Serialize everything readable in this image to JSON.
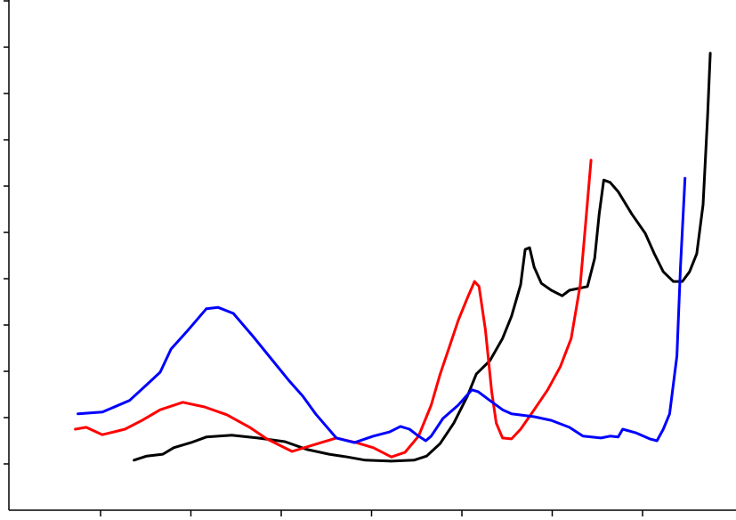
{
  "chart_data": {
    "type": "line",
    "xlim": [
      0,
      8
    ],
    "ylim": [
      -1,
      10
    ],
    "xticks": [
      1,
      2,
      3,
      4,
      5,
      6,
      7
    ],
    "yticks": [
      0,
      1,
      2,
      3,
      4,
      5,
      6,
      7,
      8,
      9,
      10
    ],
    "series": [
      {
        "color": "#000000",
        "x": [
          1.37,
          1.51,
          1.69,
          1.81,
          2.0,
          2.17,
          2.45,
          2.74,
          3.04,
          3.29,
          3.53,
          3.73,
          3.93,
          4.22,
          4.47,
          4.61,
          4.76,
          4.91,
          5.06,
          5.16,
          5.31,
          5.45,
          5.55,
          5.65,
          5.7,
          5.75,
          5.8,
          5.88,
          5.99,
          6.11,
          6.19,
          6.39,
          6.47,
          6.52,
          6.57,
          6.64,
          6.73,
          6.88,
          7.03,
          7.13,
          7.23,
          7.34,
          7.44,
          7.52,
          7.6,
          7.67,
          7.72,
          7.75
        ],
        "values": [
          0.08,
          0.17,
          0.21,
          0.35,
          0.46,
          0.58,
          0.62,
          0.56,
          0.48,
          0.31,
          0.21,
          0.15,
          0.08,
          0.06,
          0.08,
          0.17,
          0.44,
          0.88,
          1.46,
          1.94,
          2.23,
          2.71,
          3.19,
          3.87,
          4.63,
          4.67,
          4.25,
          3.9,
          3.75,
          3.63,
          3.75,
          3.83,
          4.44,
          5.4,
          6.13,
          6.08,
          5.88,
          5.4,
          4.98,
          4.54,
          4.15,
          3.94,
          3.94,
          4.15,
          4.54,
          5.6,
          7.52,
          8.87
        ]
      },
      {
        "color": "#ff0000",
        "x": [
          0.72,
          0.84,
          1.02,
          1.27,
          1.46,
          1.66,
          1.91,
          2.15,
          2.4,
          2.65,
          2.84,
          3.12,
          3.34,
          3.61,
          3.83,
          4.02,
          4.22,
          4.37,
          4.52,
          4.66,
          4.76,
          4.86,
          4.96,
          5.06,
          5.14,
          5.19,
          5.26,
          5.33,
          5.38,
          5.45,
          5.55,
          5.65,
          5.8,
          5.95,
          6.09,
          6.21,
          6.31,
          6.37,
          6.43
        ],
        "values": [
          0.75,
          0.79,
          0.63,
          0.75,
          0.94,
          1.17,
          1.33,
          1.23,
          1.06,
          0.79,
          0.54,
          0.27,
          0.4,
          0.56,
          0.46,
          0.35,
          0.15,
          0.25,
          0.6,
          1.27,
          1.94,
          2.52,
          3.1,
          3.58,
          3.94,
          3.83,
          2.9,
          1.56,
          0.88,
          0.56,
          0.54,
          0.75,
          1.17,
          1.6,
          2.1,
          2.71,
          3.87,
          5.21,
          6.56
        ]
      },
      {
        "color": "#0000ff",
        "x": [
          0.75,
          1.02,
          1.32,
          1.51,
          1.66,
          1.78,
          1.96,
          2.17,
          2.3,
          2.47,
          2.69,
          2.89,
          3.09,
          3.24,
          3.38,
          3.61,
          3.81,
          4.02,
          4.2,
          4.32,
          4.42,
          4.52,
          4.6,
          4.66,
          4.79,
          4.96,
          5.11,
          5.18,
          5.31,
          5.45,
          5.55,
          5.8,
          5.99,
          6.19,
          6.34,
          6.54,
          6.64,
          6.73,
          6.78,
          6.93,
          7.08,
          7.16,
          7.23,
          7.3,
          7.38,
          7.42,
          7.47
        ],
        "values": [
          1.08,
          1.12,
          1.37,
          1.71,
          1.98,
          2.48,
          2.87,
          3.35,
          3.38,
          3.25,
          2.75,
          2.27,
          1.79,
          1.46,
          1.08,
          0.56,
          0.46,
          0.6,
          0.69,
          0.81,
          0.75,
          0.6,
          0.5,
          0.6,
          0.98,
          1.27,
          1.6,
          1.56,
          1.37,
          1.17,
          1.08,
          1.02,
          0.94,
          0.79,
          0.6,
          0.56,
          0.6,
          0.58,
          0.75,
          0.67,
          0.54,
          0.5,
          0.75,
          1.08,
          2.33,
          4.25,
          6.17
        ]
      }
    ]
  }
}
